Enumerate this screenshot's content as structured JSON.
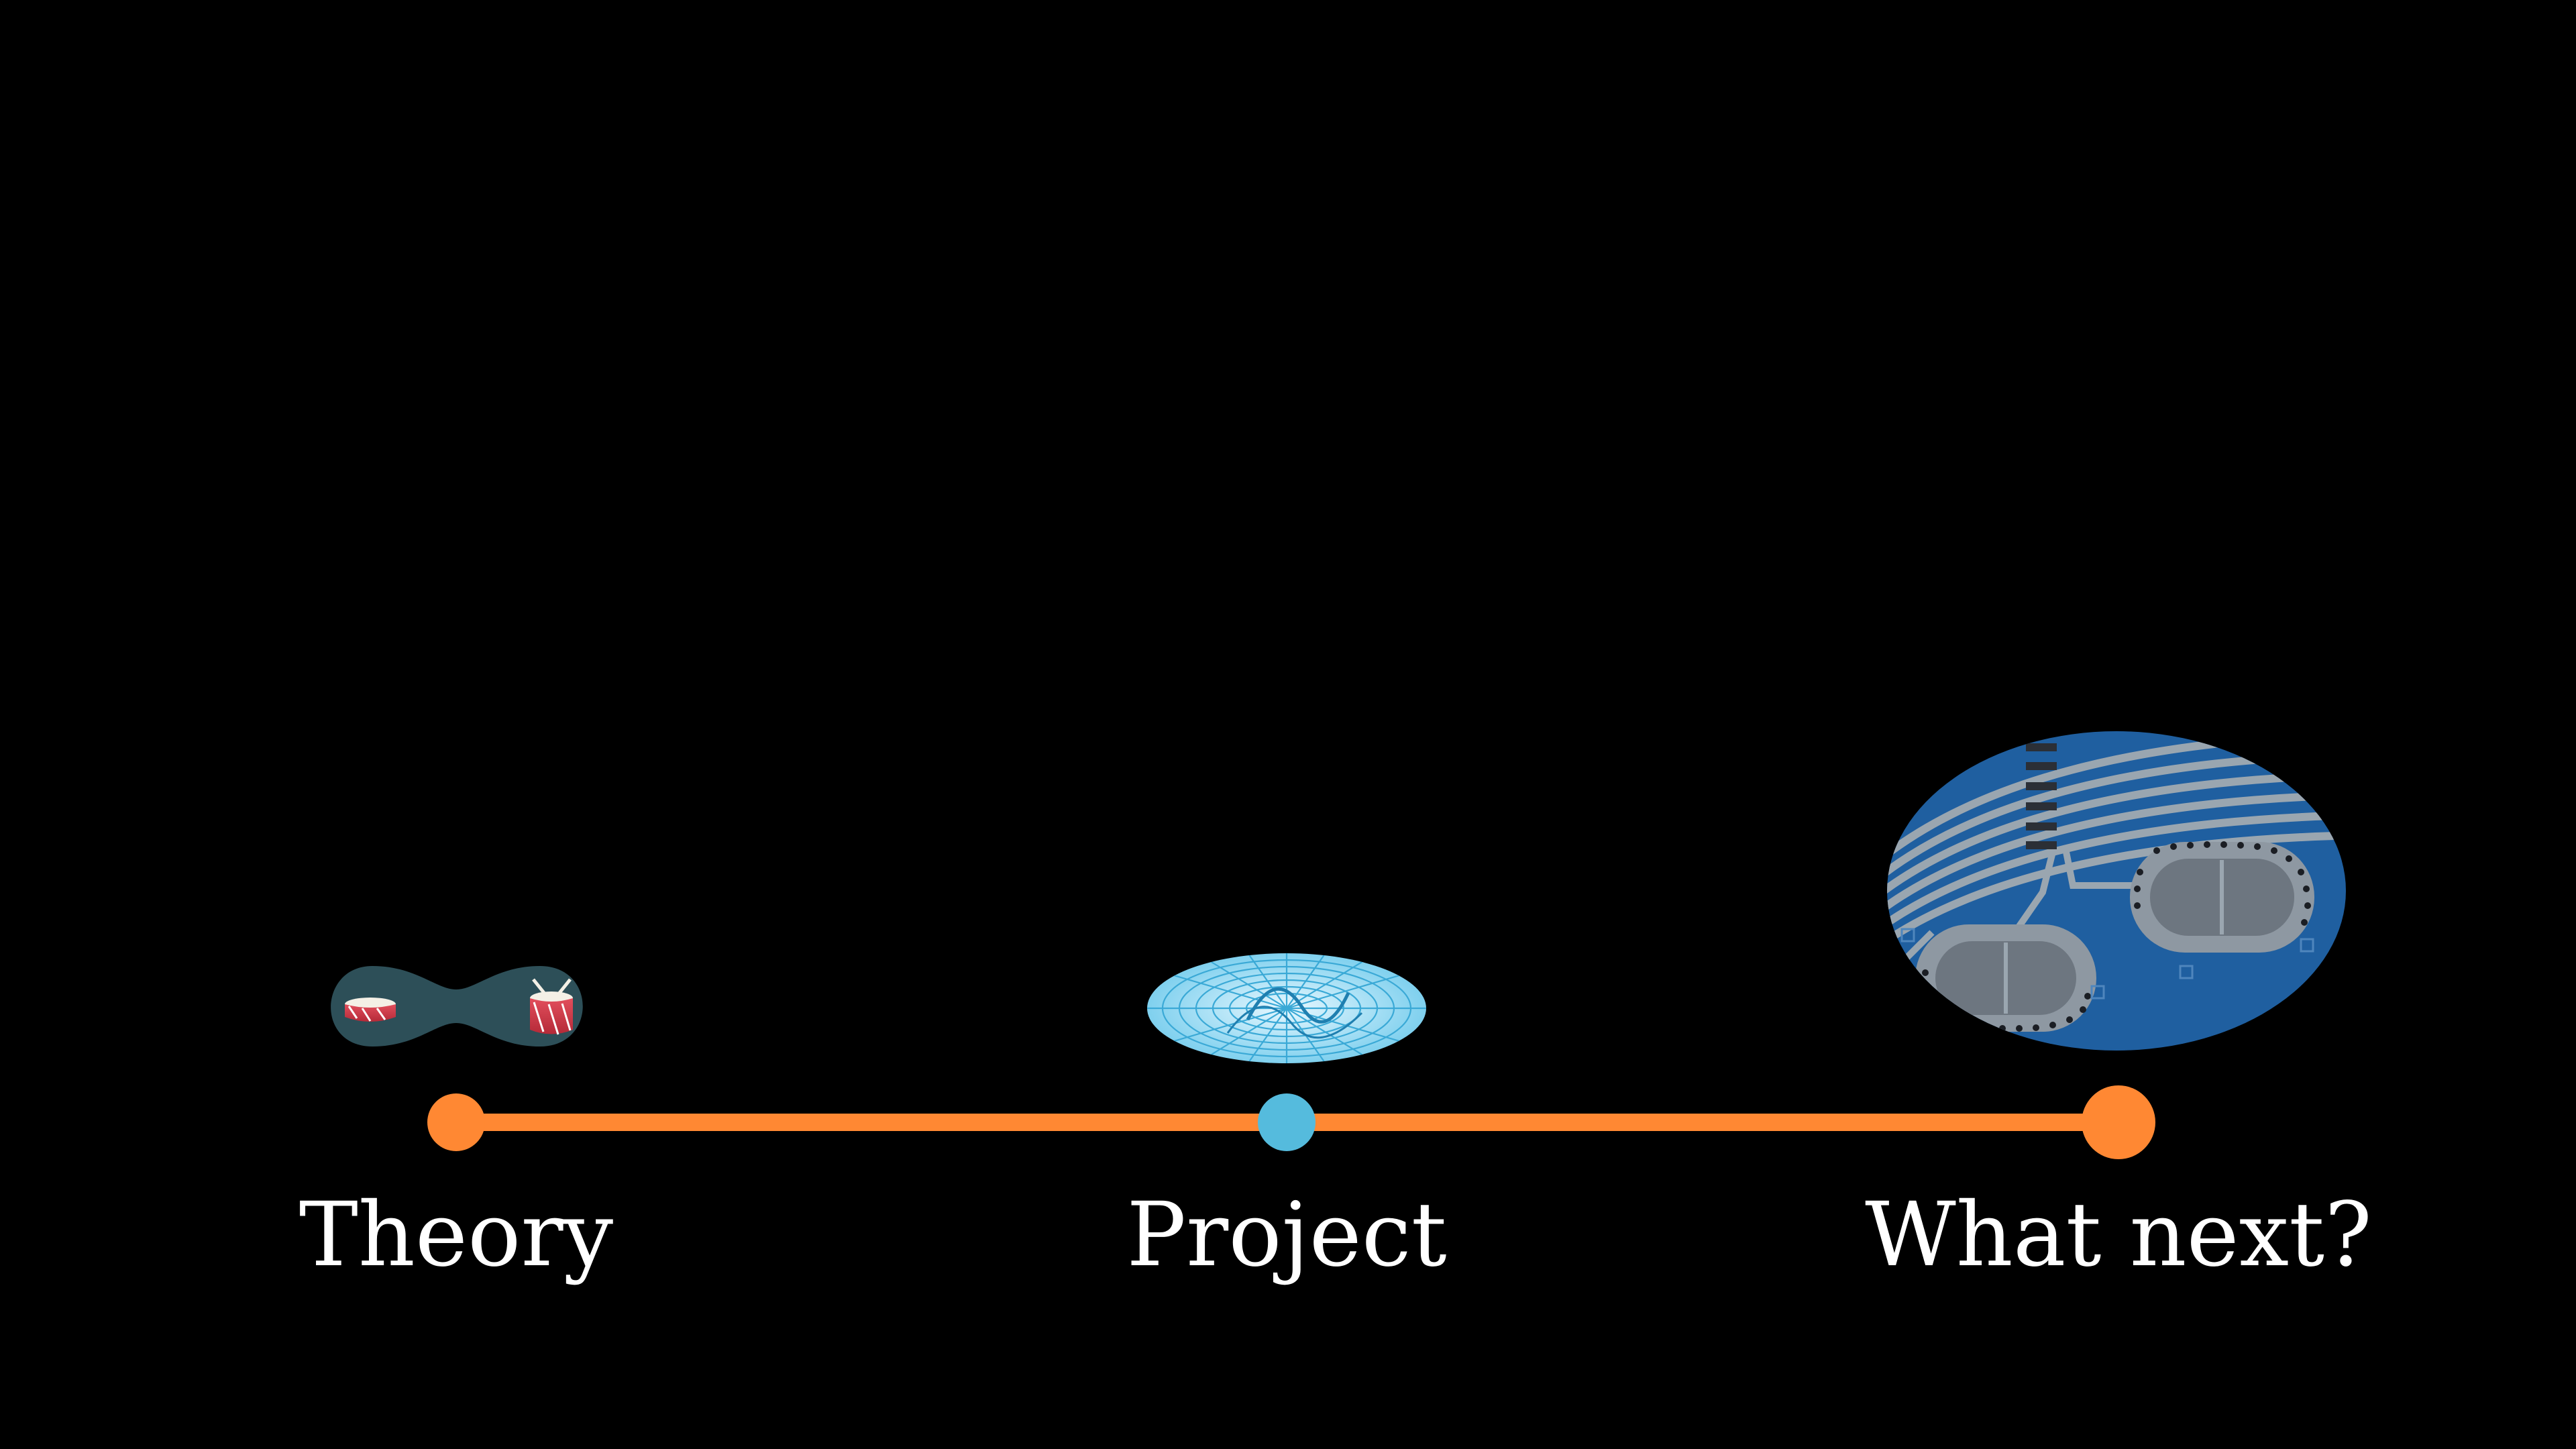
{
  "timeline": {
    "line_color": "#ff8833",
    "stops": [
      {
        "label": "Theory",
        "dot_color": "#ff8833",
        "icon": "drums-icon"
      },
      {
        "label": "Project",
        "dot_color": "#55bbdd",
        "icon": "wireframe-membrane-icon"
      },
      {
        "label": "What next?",
        "dot_color": "#ff8833",
        "icon": "chip-micrograph-icon"
      }
    ]
  }
}
